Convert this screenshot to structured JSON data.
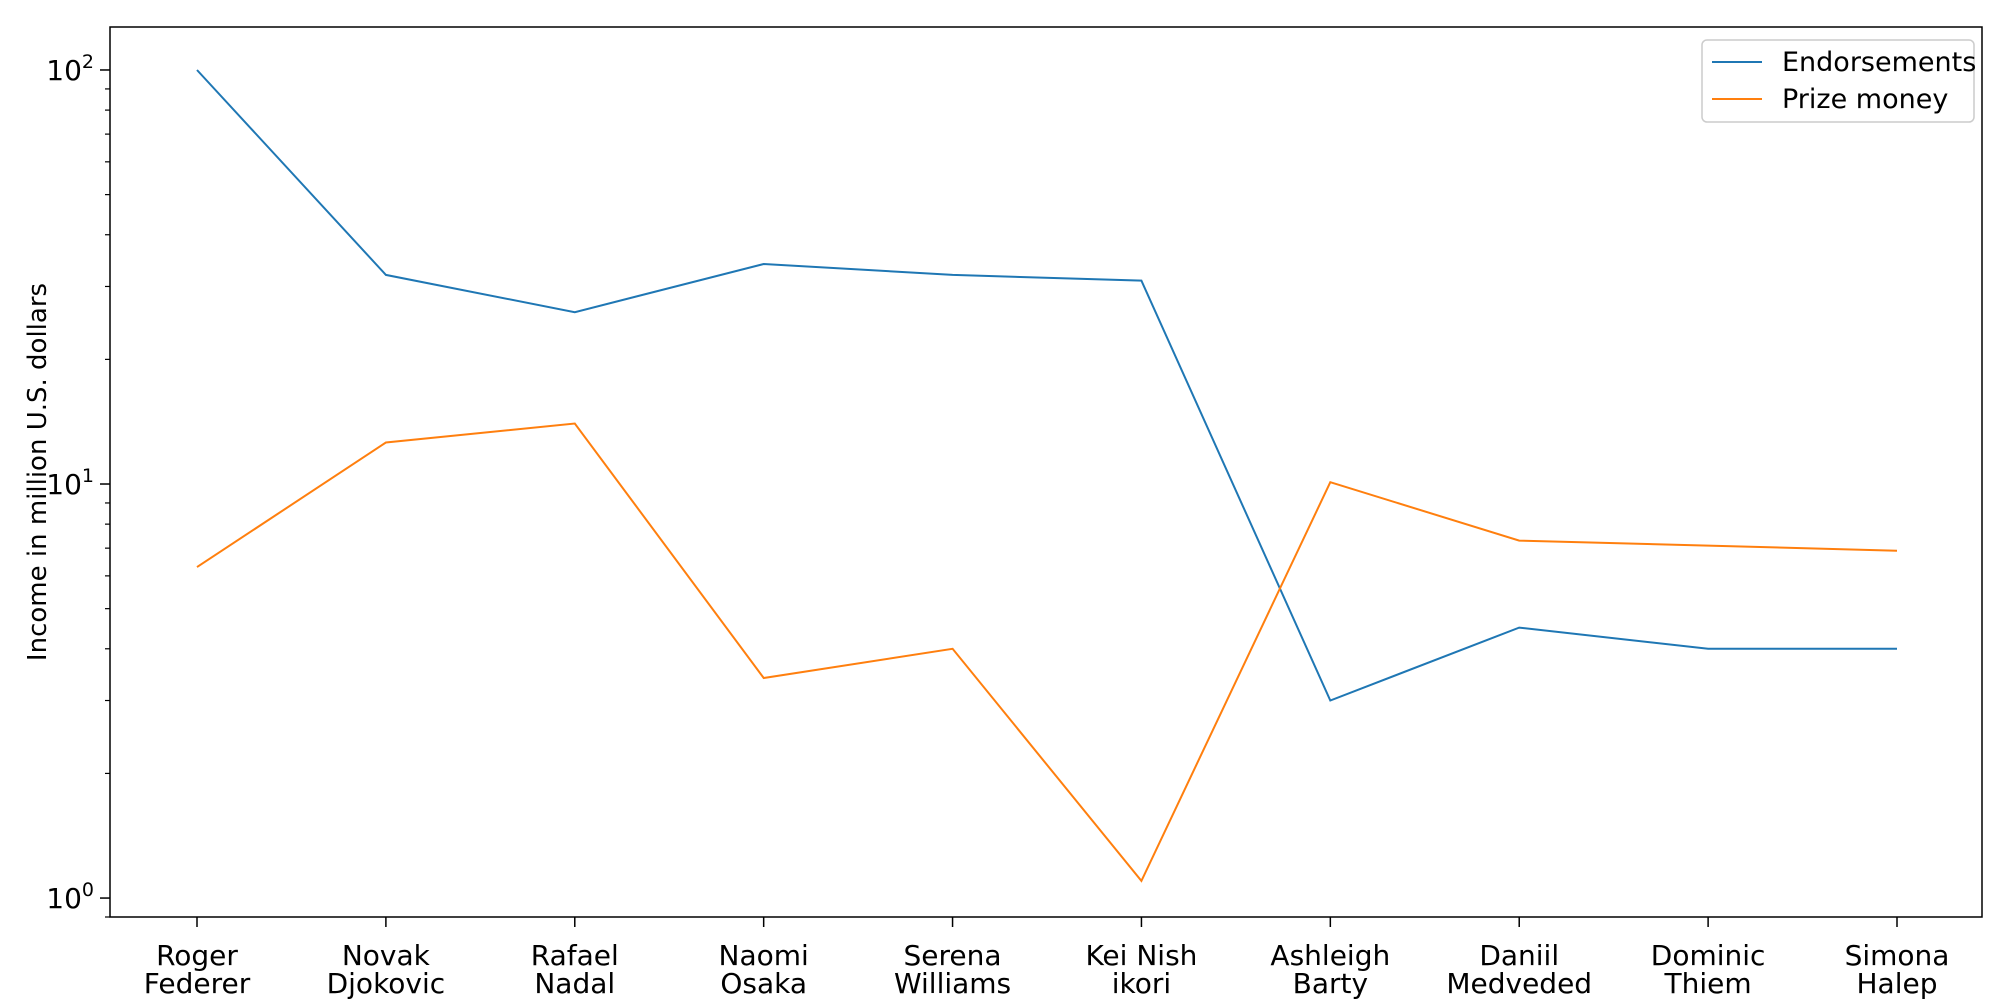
{
  "chart_data": {
    "type": "line",
    "title": "",
    "xlabel": "",
    "ylabel": "Income in million U.S. dollars",
    "yscale": "log",
    "ylim": [
      0.9,
      127
    ],
    "y_ticks": [
      {
        "value": 1,
        "base": "10",
        "exp": "0"
      },
      {
        "value": 10,
        "base": "10",
        "exp": "1"
      },
      {
        "value": 100,
        "base": "10",
        "exp": "2"
      }
    ],
    "categories": [
      [
        "Roger",
        "Federer"
      ],
      [
        "Novak",
        "Djokovic"
      ],
      [
        "Rafael",
        "Nadal"
      ],
      [
        "Naomi",
        "Osaka"
      ],
      [
        "Serena",
        "Williams"
      ],
      [
        "Kei Nish",
        "ikori"
      ],
      [
        "Ashleigh",
        "Barty"
      ],
      [
        "Daniil",
        "Medveded"
      ],
      [
        "Dominic",
        "Thiem"
      ],
      [
        "Simona",
        "Halep"
      ]
    ],
    "series": [
      {
        "name": "Endorsements",
        "color": "#1f77b4",
        "values": [
          100,
          32,
          26,
          34,
          32,
          31,
          3,
          4.5,
          4,
          4
        ]
      },
      {
        "name": "Prize money",
        "color": "#ff7f0e",
        "values": [
          6.3,
          12.6,
          14,
          3.4,
          4,
          1.1,
          10.1,
          7.3,
          7.1,
          6.9
        ]
      }
    ],
    "legend": {
      "position": "top-right"
    },
    "grid": false
  }
}
